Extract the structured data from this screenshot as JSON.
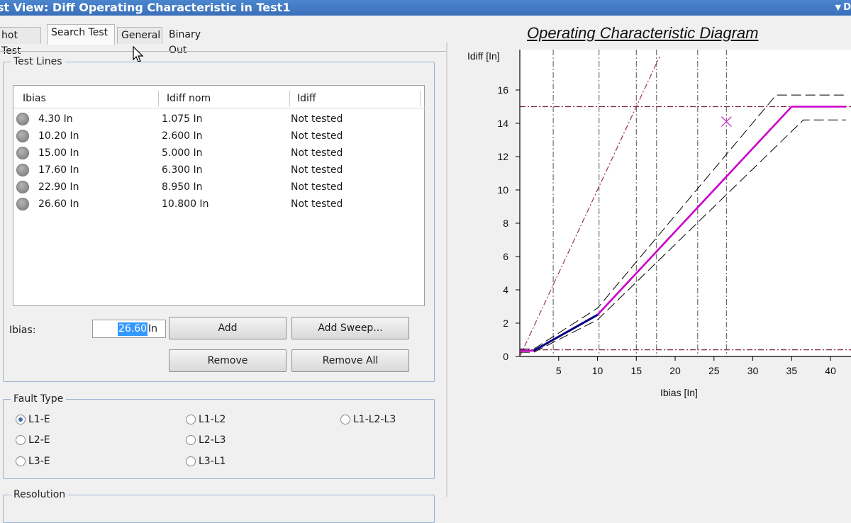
{
  "window": {
    "title": "st View: Diff Operating Characteristic in Test1",
    "menu_glyph": "▼",
    "menu_trailing": "D"
  },
  "tabs": [
    {
      "label": "hot Test",
      "active": false
    },
    {
      "label": "Search Test",
      "active": true
    },
    {
      "label": "General",
      "active": false
    },
    {
      "label": "Binary Out",
      "active": false
    }
  ],
  "test_lines": {
    "legend": "Test Lines",
    "columns": [
      "Ibias",
      "Idiff nom",
      "Idiff"
    ],
    "rows": [
      {
        "ibias": "4.30 In",
        "idiff_nom": "1.075 In",
        "idiff": "Not tested"
      },
      {
        "ibias": "10.20 In",
        "idiff_nom": "2.600 In",
        "idiff": "Not tested"
      },
      {
        "ibias": "15.00 In",
        "idiff_nom": "5.000 In",
        "idiff": "Not tested"
      },
      {
        "ibias": "17.60 In",
        "idiff_nom": "6.300 In",
        "idiff": "Not tested"
      },
      {
        "ibias": "22.90 In",
        "idiff_nom": "8.950 In",
        "idiff": "Not tested"
      },
      {
        "ibias": "26.60 In",
        "idiff_nom": "10.800 In",
        "idiff": "Not tested"
      }
    ],
    "ibias_label": "Ibias:",
    "ibias_value": "26.60",
    "ibias_unit": "In",
    "add_label": "Add",
    "add_sweep_label": "Add Sweep...",
    "remove_label": "Remove",
    "remove_all_label": "Remove All"
  },
  "fault_type": {
    "legend": "Fault Type",
    "options": [
      "L1-E",
      "L1-L2",
      "L1-L2-L3",
      "L2-E",
      "L2-L3",
      "L3-E",
      "L3-L1"
    ],
    "selected": "L1-E"
  },
  "resolution": {
    "legend": "Resolution"
  },
  "chart_data": {
    "type": "line",
    "title": "Operating Characteristic Diagram",
    "xlabel": "Ibias  [In]",
    "ylabel": "Idiff  [In]",
    "xlim": [
      0,
      42
    ],
    "ylim": [
      0,
      18
    ],
    "xticks": [
      5,
      10,
      15,
      20,
      25,
      30,
      35,
      40
    ],
    "yticks": [
      0,
      2,
      4,
      6,
      8,
      10,
      12,
      14,
      16
    ],
    "series": [
      {
        "role": "characteristic",
        "color": "#cc00cc",
        "x": [
          0,
          1.8,
          10,
          35,
          42
        ],
        "y": [
          0.35,
          0.35,
          2.5,
          15,
          15
        ]
      },
      {
        "role": "upper-tolerance",
        "color": "#000000",
        "x": [
          0,
          1.8,
          10,
          33,
          42
        ],
        "y": [
          0.45,
          0.45,
          2.9,
          15.7,
          15.7
        ]
      },
      {
        "role": "lower-tolerance",
        "color": "#000000",
        "x": [
          0,
          1.8,
          10,
          36.5,
          42
        ],
        "y": [
          0.25,
          0.25,
          2.2,
          14.2,
          14.2
        ]
      },
      {
        "role": "low-range-tolerance",
        "color": "#000080",
        "x": [
          1.8,
          10
        ],
        "y": [
          0.35,
          2.5
        ]
      },
      {
        "role": "unity-line",
        "color": "#993355",
        "x": [
          0,
          18
        ],
        "y": [
          0,
          18
        ]
      }
    ],
    "ref_lines_vertical": [
      4.3,
      10.2,
      15.0,
      17.6,
      22.9,
      26.6
    ],
    "ref_lines_horizontal": [
      0.4,
      15
    ],
    "marker": {
      "x": 26.6,
      "y": 14.1,
      "shape": "x",
      "color": "#cc44cc"
    }
  }
}
